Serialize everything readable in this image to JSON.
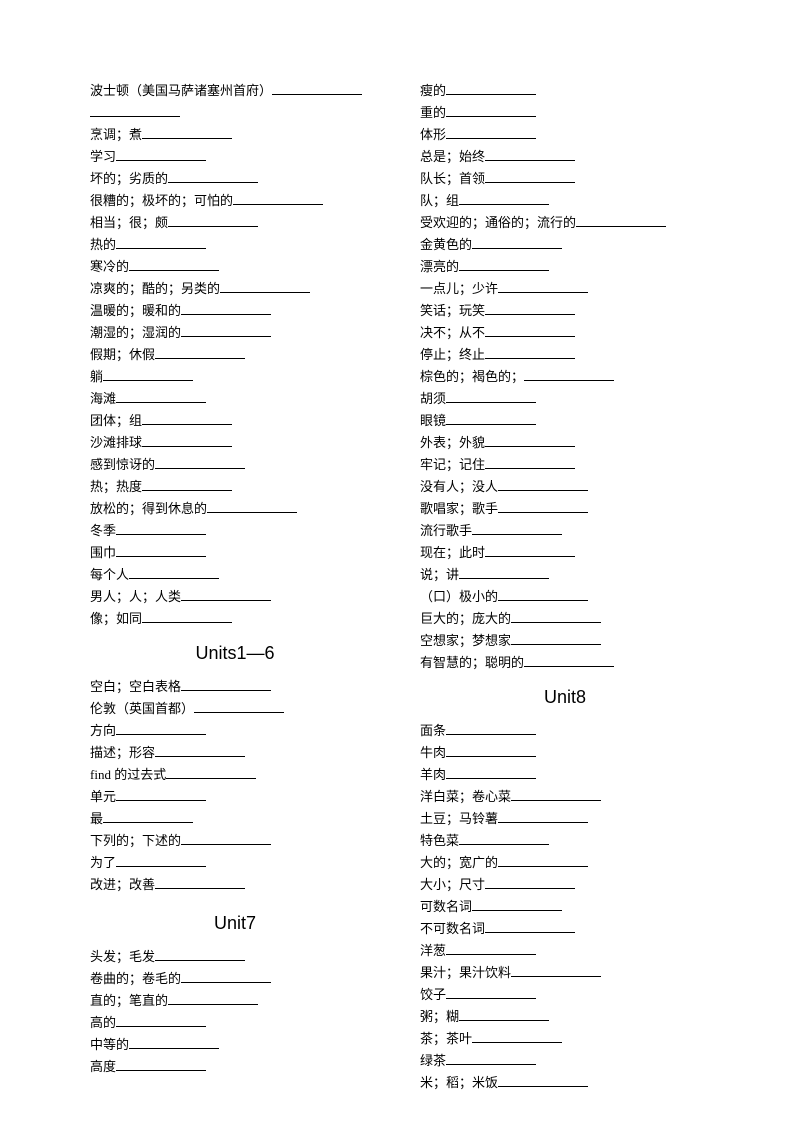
{
  "left_column": {
    "section1": [
      "波士顿（美国马萨诸塞州首府）",
      "",
      "烹调；煮",
      "学习",
      "坏的；劣质的",
      "很糟的；极坏的；可怕的",
      "相当；很；颇",
      "热的",
      "寒冷的",
      "凉爽的；酷的；另类的",
      "温暖的；暖和的",
      "潮湿的；湿润的",
      "假期；休假",
      "躺",
      "海滩",
      "团体；组",
      "沙滩排球",
      "感到惊讶的",
      "热；热度",
      "放松的；得到休息的",
      "冬季",
      "围巾",
      "每个人",
      "男人；人；人类",
      "像；如同"
    ],
    "heading1": "Units1—6",
    "section2": [
      "空白；空白表格",
      "伦敦（英国首都）",
      "方向",
      "描述；形容",
      "find 的过去式",
      "单元",
      "最",
      "下列的；下述的",
      "为了",
      "改进；改善"
    ],
    "heading2": "Unit7",
    "section3": [
      "头发；毛发",
      "卷曲的；卷毛的",
      "直的；笔直的",
      "高的",
      "中等的",
      "高度"
    ]
  },
  "right_column": {
    "section1": [
      "瘦的",
      "重的",
      "体形",
      "总是；始终",
      "队长；首领",
      "队；组",
      "受欢迎的；通俗的；流行的",
      "金黄色的",
      "漂亮的",
      "一点儿；少许",
      "笑话；玩笑",
      "决不；从不",
      "停止；终止",
      "棕色的；褐色的；",
      "胡须",
      "眼镜",
      "外表；外貌",
      "牢记；记住",
      "没有人；没人",
      "歌唱家；歌手",
      "流行歌手",
      "现在；此时",
      "说；讲",
      "（口）极小的",
      "巨大的；庞大的",
      "空想家；梦想家",
      "有智慧的；聪明的"
    ],
    "heading1": "Unit8",
    "section2": [
      "面条",
      "牛肉",
      "羊肉",
      "洋白菜；卷心菜",
      "土豆；马铃薯",
      "特色菜",
      "大的；宽广的",
      "大小；尺寸",
      "可数名词",
      "不可数名词",
      "洋葱",
      "果汁；果汁饮料",
      "饺子",
      "粥；糊",
      "茶；茶叶",
      "绿茶",
      "米；稻；米饭"
    ]
  }
}
